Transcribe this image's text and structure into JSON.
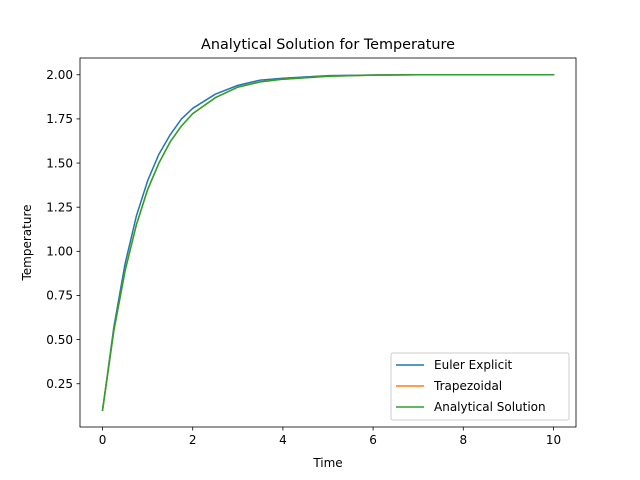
{
  "chart_data": {
    "type": "line",
    "title": "Analytical Solution for Temperature",
    "xlabel": "Time",
    "ylabel": "Temperature",
    "xlim": [
      -0.5,
      10.5
    ],
    "ylim": [
      0.005,
      2.095
    ],
    "xticks": [
      0,
      2,
      4,
      6,
      8,
      10
    ],
    "xtick_labels": [
      "0",
      "2",
      "4",
      "6",
      "8",
      "10"
    ],
    "yticks": [
      0.25,
      0.5,
      0.75,
      1.0,
      1.25,
      1.5,
      1.75,
      2.0
    ],
    "ytick_labels": [
      "0.25",
      "0.50",
      "0.75",
      "1.00",
      "1.25",
      "1.50",
      "1.75",
      "2.00"
    ],
    "grid": false,
    "legend_position": "lower right",
    "x": [
      0,
      0.25,
      0.5,
      0.75,
      1,
      1.25,
      1.5,
      1.75,
      2,
      2.5,
      3,
      3.5,
      4,
      5,
      6,
      7,
      8,
      9,
      10
    ],
    "series": [
      {
        "name": "Euler Explicit",
        "color": "#1f77b4",
        "values": [
          0.1,
          0.57,
          0.93,
          1.2,
          1.4,
          1.55,
          1.66,
          1.75,
          1.81,
          1.89,
          1.94,
          1.97,
          1.98,
          1.995,
          1.999,
          2.0,
          2.0,
          2.0,
          2.0
        ]
      },
      {
        "name": "Trapezoidal",
        "color": "#ff7f0e",
        "values": [
          0.1,
          0.55,
          0.89,
          1.15,
          1.35,
          1.5,
          1.62,
          1.71,
          1.78,
          1.87,
          1.93,
          1.96,
          1.975,
          1.992,
          1.998,
          2.0,
          2.0,
          2.0,
          2.0
        ]
      },
      {
        "name": "Analytical Solution",
        "color": "#2ca02c",
        "values": [
          0.1,
          0.55,
          0.89,
          1.15,
          1.35,
          1.5,
          1.62,
          1.71,
          1.78,
          1.87,
          1.93,
          1.96,
          1.975,
          1.992,
          1.998,
          2.0,
          2.0,
          2.0,
          2.0
        ]
      }
    ]
  }
}
